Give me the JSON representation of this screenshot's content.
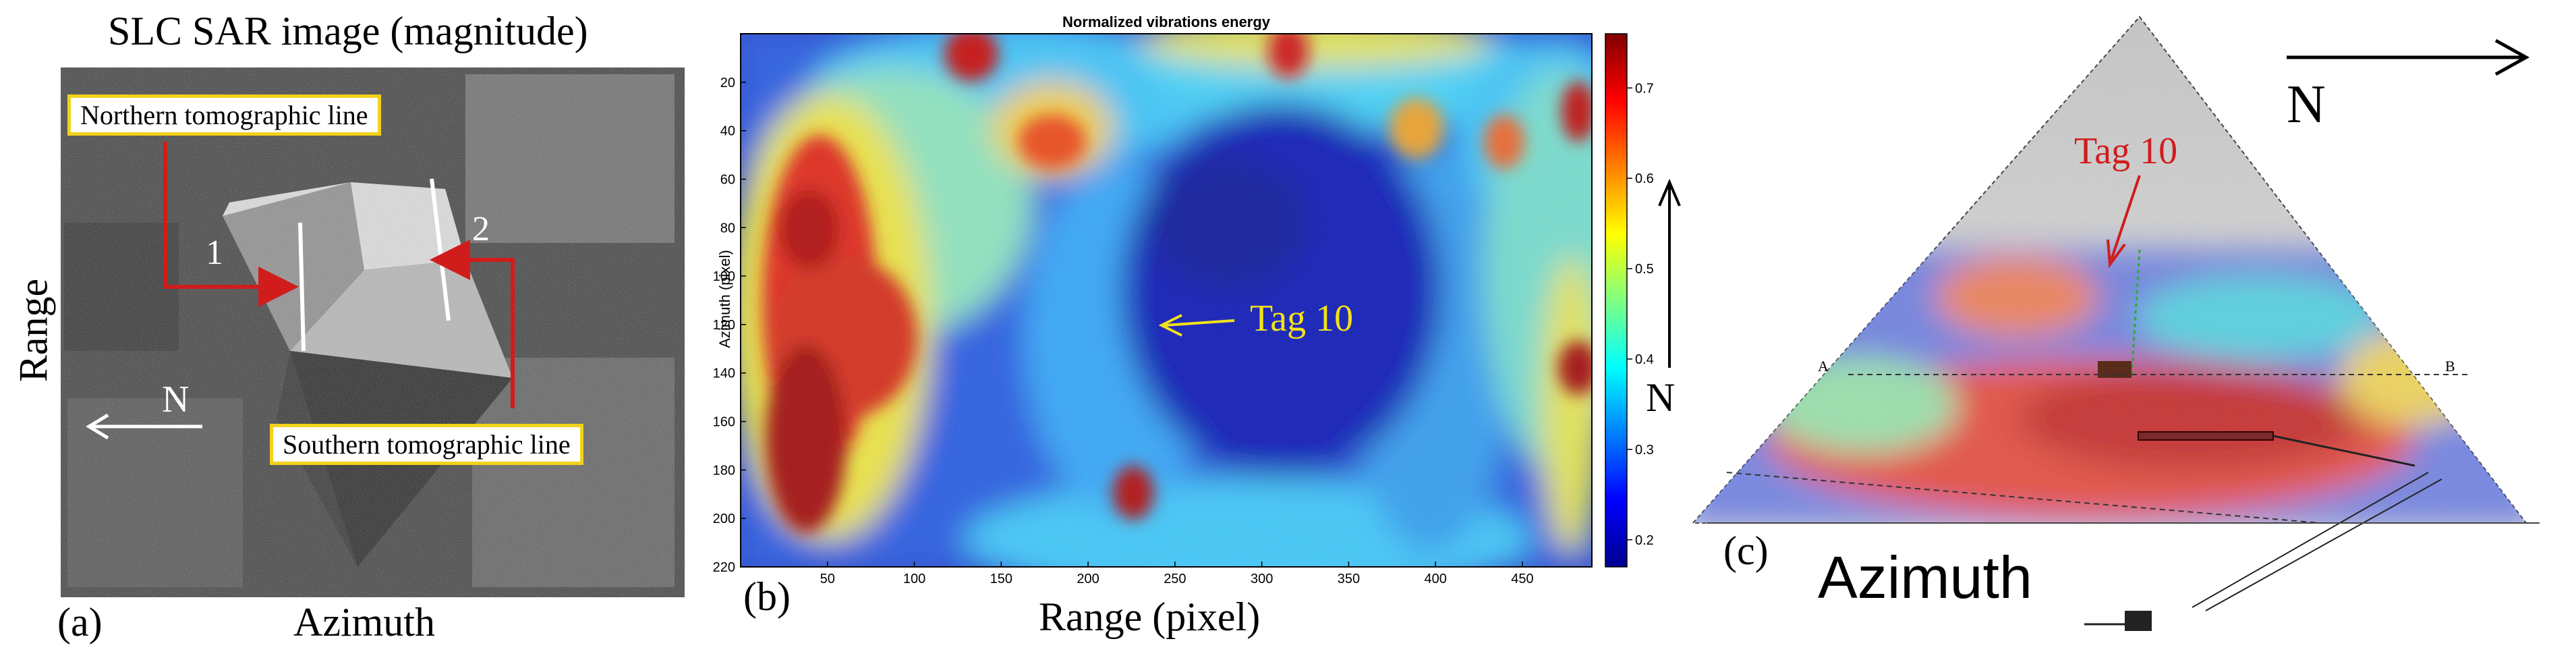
{
  "panel_a": {
    "title": "SLC SAR image (magnitude)",
    "label_northern": "Northern tomographic line",
    "label_southern": "Southern tomographic line",
    "marker_1": "1",
    "marker_2": "2",
    "north_label": "N",
    "y_axis_label": "Range",
    "x_axis_label": "Azimuth",
    "panel_letter": "(a)",
    "colors": {
      "box_border": "#f2d21a",
      "arrow": "#d11c1c"
    }
  },
  "panel_b": {
    "panel_letter": "(b)",
    "x_axis_label": "Range (pixel)",
    "tag_label": "Tag 10",
    "north_label": "N",
    "chart_data": {
      "type": "heatmap",
      "title": "Normalized vibrations energy",
      "xlabel": "Range (pixel)",
      "ylabel": "Azimuth (pixel)",
      "xlim": [
        0,
        490
      ],
      "ylim": [
        0,
        220
      ],
      "x_ticks": [
        50,
        100,
        150,
        200,
        250,
        300,
        350,
        400,
        450
      ],
      "y_ticks": [
        20,
        40,
        60,
        80,
        100,
        120,
        140,
        160,
        180,
        200,
        220
      ],
      "colorbar_ticks": [
        0.2,
        0.3,
        0.4,
        0.5,
        0.6,
        0.7
      ],
      "colorbar_range": [
        0.17,
        0.76
      ],
      "colormap": "jet",
      "annotation": {
        "text": "Tag 10",
        "x": 235,
        "y": 120
      }
    }
  },
  "panel_c": {
    "panel_letter": "(c)",
    "north_label": "N",
    "tag_label": "Tag 10",
    "x_axis_label": "Azimuth",
    "point_a": "A",
    "point_b": "B",
    "colors": {
      "tag_text": "#d11c1c"
    }
  }
}
